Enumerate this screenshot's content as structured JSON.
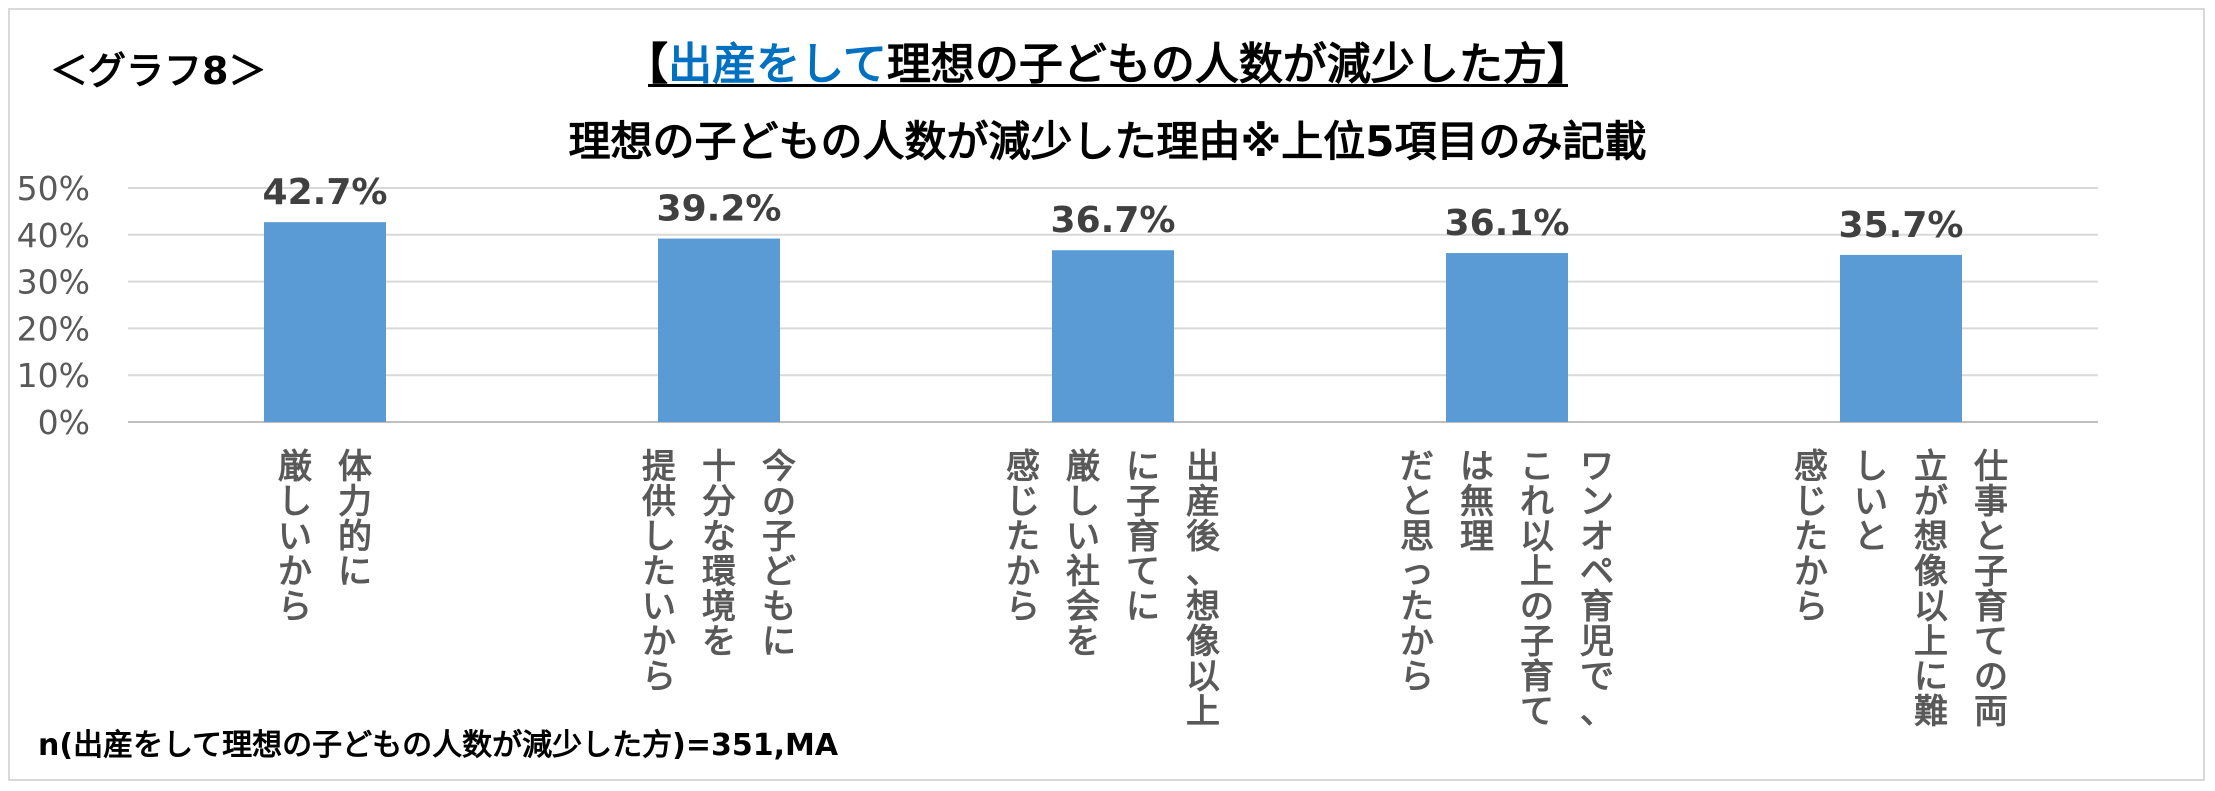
{
  "graph_label": "＜グラフ8＞",
  "title": {
    "prefix": "【",
    "highlight": "出産をして",
    "rest": "理想の子どもの人数が減少した方】",
    "highlight_color": "#0070C0"
  },
  "footnote": "n(出産をして理想の子どもの人数が減少した方)=351,MA",
  "chart_data": {
    "type": "bar",
    "title": "理想の子どもの人数が減少した理由※上位5項目のみ記載",
    "ylim": [
      0,
      50
    ],
    "yticks": [
      "0%",
      "10%",
      "20%",
      "30%",
      "40%",
      "50%"
    ],
    "grid": true,
    "bar_color": "#5B9BD5",
    "categories": [
      [
        "体力的に",
        "厳しいから"
      ],
      [
        "今の子どもに",
        "十分な環境を",
        "提供したいから"
      ],
      [
        "出産後、想像以上",
        "に子育てに",
        "厳しい社会を",
        "感じたから"
      ],
      [
        "ワンオペ育児で、",
        "これ以上の子育て",
        "は無理",
        "だと思ったから"
      ],
      [
        "仕事と子育ての両",
        "立が想像以上に難",
        "しいと",
        "感じたから"
      ]
    ],
    "values": [
      42.7,
      39.2,
      36.7,
      36.1,
      35.7
    ],
    "data_labels": [
      "42.7%",
      "39.2%",
      "36.7%",
      "36.1%",
      "35.7%"
    ]
  }
}
